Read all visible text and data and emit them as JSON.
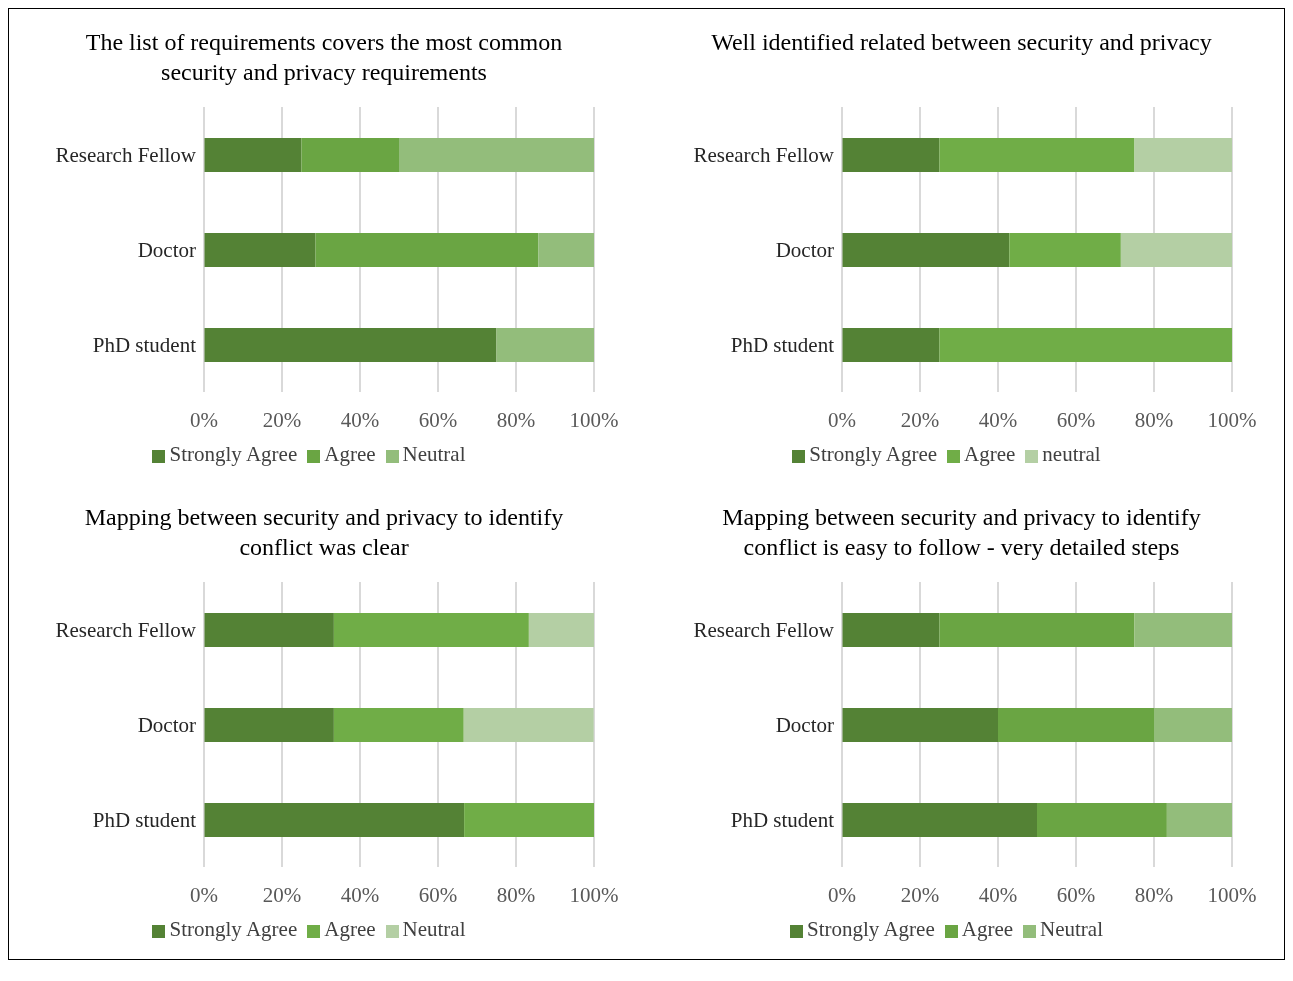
{
  "chart_data": [
    {
      "type": "bar",
      "orientation": "horizontal",
      "stacked": true,
      "title": "The list of requirements covers the most common security and privacy requirements",
      "categories": [
        "Research Fellow",
        "Doctor",
        "PhD student"
      ],
      "series": [
        {
          "name": "Strongly Agree",
          "color": "#548235",
          "values": [
            25,
            28.6,
            75
          ]
        },
        {
          "name": "Agree",
          "color": "#6aa543",
          "values": [
            25,
            57.1,
            0
          ]
        },
        {
          "name": "Neutral",
          "color": "#93bd7b",
          "values": [
            50,
            14.3,
            25
          ]
        }
      ],
      "xlim": [
        0,
        100
      ],
      "xticks": [
        {
          "value": 0,
          "label": "0%"
        },
        {
          "value": 20,
          "label": "20%"
        },
        {
          "value": 40,
          "label": "40%"
        },
        {
          "value": 60,
          "label": "60%"
        },
        {
          "value": 80,
          "label": "80%"
        },
        {
          "value": 100,
          "label": "100%"
        }
      ],
      "grid": "x",
      "legend": "bottom"
    },
    {
      "type": "bar",
      "orientation": "horizontal",
      "stacked": true,
      "title": "Well identified related between security and privacy",
      "categories": [
        "Research Fellow",
        "Doctor",
        "PhD student"
      ],
      "series": [
        {
          "name": "Strongly Agree",
          "color": "#548235",
          "values": [
            25,
            42.9,
            25
          ]
        },
        {
          "name": "Agree",
          "color": "#70ad47",
          "values": [
            50,
            28.6,
            75
          ]
        },
        {
          "name": "neutral",
          "color": "#b4cfa4",
          "values": [
            25,
            28.6,
            0
          ]
        }
      ],
      "xlim": [
        0,
        100
      ],
      "xticks": [
        {
          "value": 0,
          "label": "0%"
        },
        {
          "value": 20,
          "label": "20%"
        },
        {
          "value": 40,
          "label": "40%"
        },
        {
          "value": 60,
          "label": "60%"
        },
        {
          "value": 80,
          "label": "80%"
        },
        {
          "value": 100,
          "label": "100%"
        }
      ],
      "grid": "x",
      "legend": "bottom"
    },
    {
      "type": "bar",
      "orientation": "horizontal",
      "stacked": true,
      "title": "Mapping between security and privacy to identify conflict was clear",
      "categories": [
        "Research Fellow",
        "Doctor",
        "PhD student"
      ],
      "series": [
        {
          "name": "Strongly Agree",
          "color": "#548235",
          "values": [
            33.3,
            33.3,
            66.7
          ]
        },
        {
          "name": "Agree",
          "color": "#70ad47",
          "values": [
            50,
            33.3,
            33.3
          ]
        },
        {
          "name": "Neutral",
          "color": "#b4cfa4",
          "values": [
            16.7,
            33.3,
            0
          ]
        }
      ],
      "xlim": [
        0,
        100
      ],
      "xticks": [
        {
          "value": 0,
          "label": "0%"
        },
        {
          "value": 20,
          "label": "20%"
        },
        {
          "value": 40,
          "label": "40%"
        },
        {
          "value": 60,
          "label": "60%"
        },
        {
          "value": 80,
          "label": "80%"
        },
        {
          "value": 100,
          "label": "100%"
        }
      ],
      "grid": "x",
      "legend": "bottom"
    },
    {
      "type": "bar",
      "orientation": "horizontal",
      "stacked": true,
      "title": "Mapping between security and privacy to identify conflict is easy to follow - very detailed steps",
      "categories": [
        "Research Fellow",
        "Doctor",
        "PhD student"
      ],
      "series": [
        {
          "name": "Strongly Agree",
          "color": "#548235",
          "values": [
            25,
            40,
            50
          ]
        },
        {
          "name": "Agree",
          "color": "#6aa543",
          "values": [
            50,
            40,
            33.3
          ]
        },
        {
          "name": "Neutral",
          "color": "#93bd7b",
          "values": [
            25,
            20,
            16.7
          ]
        }
      ],
      "xlim": [
        0,
        100
      ],
      "xticks": [
        {
          "value": 0,
          "label": "0%"
        },
        {
          "value": 20,
          "label": "20%"
        },
        {
          "value": 40,
          "label": "40%"
        },
        {
          "value": 60,
          "label": "60%"
        },
        {
          "value": 80,
          "label": "80%"
        },
        {
          "value": 100,
          "label": "100%"
        }
      ],
      "grid": "x",
      "legend": "bottom"
    }
  ]
}
